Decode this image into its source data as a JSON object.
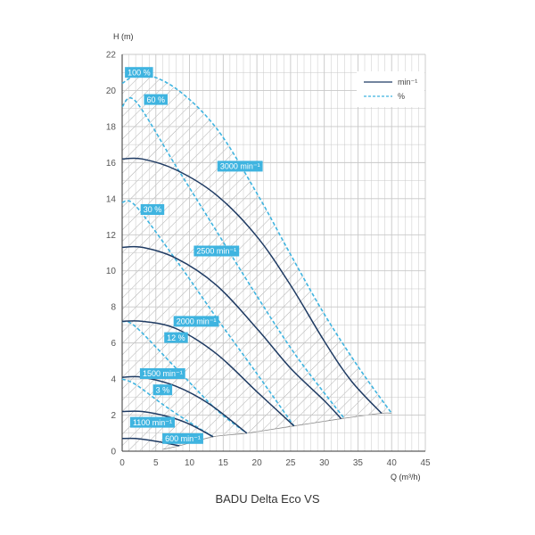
{
  "caption": "BADU Delta Eco VS",
  "colors": {
    "speed_curve": "#1f3b63",
    "percent_curve": "#3fb4e0",
    "label_bg": "#3fb4e0",
    "grid": "#c8c8c8",
    "hatch": "#9a9a9a",
    "axis": "#333333"
  },
  "chart_data": {
    "type": "line",
    "title": "",
    "xlabel": "Q (m³/h)",
    "ylabel": "H (m)",
    "xlim": [
      0,
      45
    ],
    "ylim": [
      0,
      22
    ],
    "x_ticks": [
      "0",
      "5",
      "10",
      "15",
      "20",
      "25",
      "30",
      "35",
      "40",
      "45"
    ],
    "y_ticks": [
      "0",
      "2",
      "4",
      "6",
      "8",
      "10",
      "12",
      "14",
      "16",
      "18",
      "20",
      "22"
    ],
    "grid": true,
    "legend_position": "top-right",
    "legend": [
      {
        "label": "min⁻¹",
        "style": "solid"
      },
      {
        "label": "%",
        "style": "dashed"
      }
    ],
    "speed_series": [
      {
        "name": "3000 min⁻¹",
        "x": [
          0,
          3,
          8,
          14,
          20,
          25,
          30,
          34,
          38.5
        ],
        "y": [
          16.2,
          16.2,
          15.6,
          14.2,
          11.9,
          9.2,
          6.1,
          3.9,
          2.1
        ]
      },
      {
        "name": "2500 min⁻¹",
        "x": [
          0,
          3,
          8,
          14,
          20,
          25,
          30,
          32.5
        ],
        "y": [
          11.3,
          11.3,
          10.7,
          9.2,
          6.8,
          4.6,
          2.8,
          1.8
        ]
      },
      {
        "name": "2000 min⁻¹",
        "x": [
          0,
          3,
          8,
          14,
          20,
          25.5
        ],
        "y": [
          7.2,
          7.2,
          6.8,
          5.4,
          3.3,
          1.4
        ]
      },
      {
        "name": "1500 min⁻¹",
        "x": [
          0,
          3,
          8,
          13,
          18.5
        ],
        "y": [
          4.1,
          4.1,
          3.6,
          2.6,
          1.0
        ]
      },
      {
        "name": "1100 min⁻¹",
        "x": [
          0,
          3,
          7,
          10,
          13.5
        ],
        "y": [
          2.2,
          2.2,
          1.9,
          1.5,
          0.8
        ]
      },
      {
        "name": "600 min⁻¹",
        "x": [
          0,
          2,
          5,
          8.5
        ],
        "y": [
          0.7,
          0.7,
          0.55,
          0.3
        ]
      }
    ],
    "percent_series": [
      {
        "name": "100 %",
        "x": [
          0,
          3,
          8,
          14,
          20,
          25,
          30,
          35,
          40
        ],
        "y": [
          20.4,
          20.9,
          20.1,
          17.9,
          14.3,
          10.9,
          7.6,
          4.7,
          2.1
        ]
      },
      {
        "name": "60 %",
        "x": [
          0,
          2,
          8,
          14,
          20,
          26,
          33
        ],
        "y": [
          19.1,
          19.4,
          15.8,
          12.2,
          8.6,
          5.2,
          1.8
        ]
      },
      {
        "name": "30 %",
        "x": [
          0,
          2,
          8,
          14,
          20,
          25.5
        ],
        "y": [
          13.8,
          13.6,
          10.6,
          7.4,
          4.3,
          1.4
        ]
      },
      {
        "name": "12 %",
        "x": [
          0,
          2,
          8,
          14,
          18.5
        ],
        "y": [
          7.2,
          6.9,
          4.6,
          2.3,
          1.0
        ]
      },
      {
        "name": "3 %",
        "x": [
          0,
          2,
          6,
          10,
          13.5
        ],
        "y": [
          4.0,
          3.7,
          2.6,
          1.6,
          0.8
        ]
      }
    ],
    "min_boundary": {
      "x": [
        6,
        8.5,
        13.5,
        18.5,
        25.5,
        32.5,
        38.5,
        40
      ],
      "y": [
        0.1,
        0.3,
        0.8,
        1.0,
        1.4,
        1.8,
        2.1,
        2.1
      ]
    },
    "curve_labels": [
      {
        "text": "100 %",
        "x": 2.5,
        "y": 21.0
      },
      {
        "text": "60 %",
        "x": 5.0,
        "y": 19.5
      },
      {
        "text": "3000 min⁻¹",
        "x": 17.5,
        "y": 15.8
      },
      {
        "text": "30 %",
        "x": 4.5,
        "y": 13.4
      },
      {
        "text": "2500 min⁻¹",
        "x": 14.0,
        "y": 11.1
      },
      {
        "text": "2000 min⁻¹",
        "x": 11.0,
        "y": 7.2
      },
      {
        "text": "12 %",
        "x": 8.0,
        "y": 6.3
      },
      {
        "text": "1500 min⁻¹",
        "x": 6.0,
        "y": 4.3
      },
      {
        "text": "3 %",
        "x": 6.0,
        "y": 3.4
      },
      {
        "text": "1100 min⁻¹",
        "x": 4.5,
        "y": 1.6
      },
      {
        "text": "600 min⁻¹",
        "x": 9.0,
        "y": 0.7
      }
    ]
  }
}
